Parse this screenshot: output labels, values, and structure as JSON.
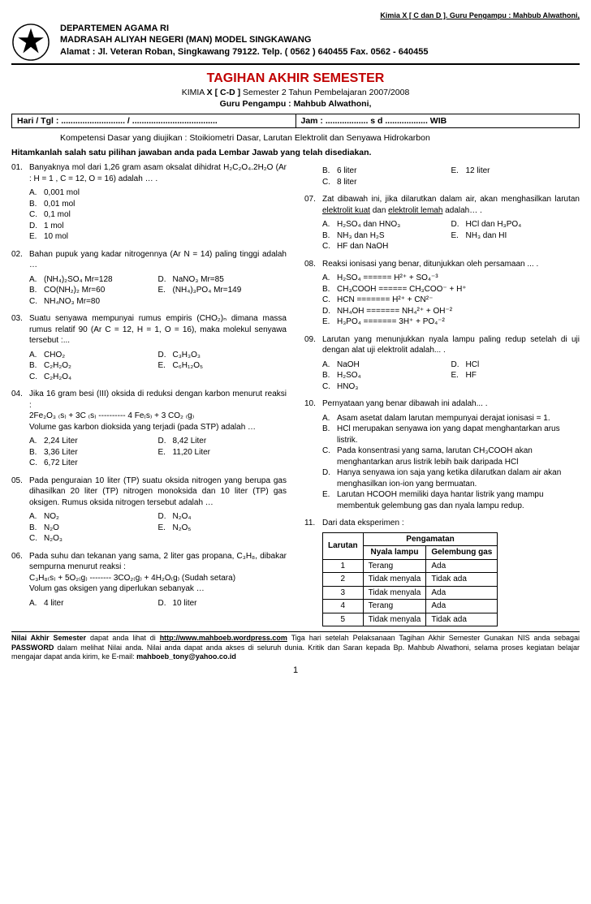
{
  "top_right": "Kimia  X  [ C dan D ].  Guru Pengampu :  Mahbub Alwathoni,",
  "header": {
    "dept": "DEPARTEMEN AGAMA RI",
    "school": "MADRASAH ALIYAH NEGERI (MAN) MODEL SINGKAWANG",
    "address": "Alamat : Jl. Veteran Roban, Singkawang  79122. Telp. ( 0562 ) 640455 Fax. 0562 - 640455"
  },
  "title": "TAGIHAN  AKHIR  SEMESTER",
  "subject_line_prefix": "KIMIA   ",
  "subject_class": "X [ C-D ]",
  "subject_rest": "    Semester 2  Tahun  Pembelajaran  2007/2008",
  "teacher_label": "Guru Pengampu :  Mahbub Alwathoni,",
  "info_left": "Hari / Tgl  :  ........................... / ....................................",
  "info_right": "Jam  :   ..................   s d  ..................  WIB",
  "kompetensi": "Kompetensi Dasar yang diujikan :  Stoikiometri Dasar, Larutan Elektrolit dan Senyawa Hidrokarbon",
  "instruksi": "Hitamkanlah salah satu pilihan jawaban anda  pada Lembar Jawab yang  telah disediakan.",
  "questions": [
    {
      "n": "01.",
      "text": "Banyaknya mol dari 1,26 gram asam oksalat dihidrat H₂C₂O₄.2H₂O (Ar : H = 1 , C = 12, O = 16) adalah … .",
      "opts": [
        [
          "A.",
          "0,001 mol"
        ],
        [
          "B.",
          "0,01   mol"
        ],
        [
          "C.",
          "0,1     mol"
        ],
        [
          "D.",
          "1      mol"
        ],
        [
          "E.",
          "10   mol"
        ]
      ]
    },
    {
      "n": "02.",
      "text": "Bahan pupuk yang kadar nitrogennya (Ar N = 14) paling tinggi adalah …",
      "opts2": [
        [
          "A.",
          "(NH₄)₂SO₄ Mr=128",
          "D.",
          "NaNO₃     Mr=85"
        ],
        [
          "B.",
          "CO(NH₂)₂  Mr=60",
          "E.",
          "(NH₄)₃PO₄ Mr=149"
        ],
        [
          "C.",
          "NH₄NO₃   Mr=80",
          "",
          ""
        ]
      ]
    },
    {
      "n": "03.",
      "text": "Suatu senyawa mempunyai rumus empiris (CHO₂)ₙ dimana massa rumus relatif 90 (Ar C = 12, H = 1, O = 16), maka molekul senyawa tersebut :...",
      "opts2": [
        [
          "A.",
          "CHO₂",
          "D.",
          "C₃H₃O₃"
        ],
        [
          "B.",
          "C₂H₂O₂",
          "E.",
          "C₆H₁₂O₅"
        ],
        [
          "C.",
          "C₂H₂O₄",
          "",
          ""
        ]
      ]
    },
    {
      "n": "04.",
      "text": "Jika 16 gram besi (III) oksida di reduksi dengan karbon menurut reaksi :\n2Fe₂O₃ ₍s₎ + 3C ₍s₎  ---------- 4 Fe₍s₎ + 3 CO₂ ₍g₎\nVolume gas karbon dioksida yang terjadi (pada STP) adalah …",
      "opts2": [
        [
          "A.",
          "2,24  Liter",
          "D.",
          "8,42  Liter"
        ],
        [
          "B.",
          "3,36  Liter",
          "E.",
          "11,20 Liter"
        ],
        [
          "C.",
          "6,72  Liter",
          "",
          ""
        ]
      ]
    },
    {
      "n": "05.",
      "text": "Pada penguraian 10 liter (TP) suatu oksida nitrogen yang berupa gas dihasilkan 20 liter (TP) nitrogen monoksida dan 10 liter (TP) gas oksigen. Rumus oksida nitrogen tersebut adalah …",
      "opts2": [
        [
          "A.",
          "NO₂",
          "D.",
          "N₂O₄"
        ],
        [
          "B.",
          "N₂O",
          "E.",
          "N₂O₅"
        ],
        [
          "C.",
          "N₂O₃",
          "",
          ""
        ]
      ]
    },
    {
      "n": "06.",
      "text": "Pada suhu dan tekanan yang sama, 2 liter gas propana, C₃H₈, dibakar sempurna menurut reaksi :\nC₃H₈₍s₎ + 5O₂₍g₎ -------- 3CO₂₍g₎ + 4H₂O₍g₎ (Sudah setara)\nVolum gas oksigen yang diperlukan sebanyak …",
      "opts2": [
        [
          "A.",
          "4 liter",
          "D.",
          "10 liter"
        ]
      ]
    },
    {
      "n": "",
      "continuation": true,
      "opts2": [
        [
          "B.",
          "6 liter",
          "E.",
          "12 liter"
        ],
        [
          "C.",
          "8 liter",
          "",
          ""
        ]
      ]
    },
    {
      "n": "07.",
      "text": "Zat dibawah ini, jika dilarutkan dalam air, akan menghasilkan larutan elektrolit kuat dan elektrolit lemah adalah… .",
      "text_underline": [
        "elektrolit kuat",
        "elektrolit lemah"
      ],
      "opts2": [
        [
          "A.",
          "H₂SO₄ dan HNO₃",
          "D.",
          "HCl dan H₃PO₄"
        ],
        [
          "B.",
          "NH₃ dan H₂S",
          "E.",
          "NH₃ dan HI"
        ],
        [
          "C.",
          "HF dan NaOH",
          "",
          ""
        ]
      ]
    },
    {
      "n": "08.",
      "text": "Reaksi   ionisasi yang  benar,    ditunjukkan  oleh persamaan ... .",
      "opts": [
        [
          "A.",
          "H₂SO₄  ======  H²⁺  +  SO₄⁻³"
        ],
        [
          "B.",
          "CH₃COOH  ======  CH₃COO⁻ + H⁺"
        ],
        [
          "C.",
          "HCN  =======   H²⁺ + CN²⁻"
        ],
        [
          "D.",
          "NH₄OH  =======   NH₄²⁺  +  OH⁻²"
        ],
        [
          "E.",
          "H₃PO₄  =======  3H⁺  +  PO₄⁻²"
        ]
      ]
    },
    {
      "n": "09.",
      "text": "Larutan yang menunjukkan nyala lampu paling redup setelah di uji dengan alat uji elektrolit adalah... .",
      "opts2": [
        [
          "A.",
          "NaOH",
          "D.",
          "HCl"
        ],
        [
          "B.",
          "H₂SO₄",
          "E.",
          "HF"
        ],
        [
          "C.",
          "HNO₃",
          "",
          ""
        ]
      ]
    },
    {
      "n": "10.",
      "text": "Pernyataan  yang benar dibawah ini  adalah... .",
      "opts": [
        [
          "A.",
          "Asam asetat dalam larutan mempunyai derajat ionisasi = 1."
        ],
        [
          "B.",
          "HCl merupakan senyawa ion yang dapat menghantarkan arus listrik."
        ],
        [
          "C.",
          "Pada konsentrasi yang sama, larutan CH₃COOH akan menghantarkan arus listrik lebih baik daripada HCl"
        ],
        [
          "D.",
          "Hanya senyawa ion saja yang ketika dilarutkan dalam air akan menghasilkan ion-ion yang bermuatan."
        ],
        [
          "E.",
          "Larutan HCOOH memiliki daya hantar listrik yang mampu membentuk gelembung gas dan nyala lampu redup."
        ]
      ]
    },
    {
      "n": "11.",
      "text": "Dari data eksperimen :",
      "table": {
        "headers": [
          "Larutan",
          "Nyala lampu",
          "Gelembung gas"
        ],
        "super_header": "Pengamatan",
        "rows": [
          [
            "1",
            "Terang",
            "Ada"
          ],
          [
            "2",
            "Tidak menyala",
            "Tidak ada"
          ],
          [
            "3",
            "Tidak menyala",
            "Ada"
          ],
          [
            "4",
            "Terang",
            "Ada"
          ],
          [
            "5",
            "Tidak menyala",
            "Tidak ada"
          ]
        ]
      }
    }
  ],
  "footer": "Nilai  Akhir Semester  dapat  anda lihat  di  http://www.mahboeb.wordpress.com  Tiga hari setelah Pelaksanaan Tagihan  Akhir Semester  Gunakan NIS anda sebagai PASSWORD dalam melihat Nilai anda. Nilai anda dapat anda akses  di seluruh dunia. Kritik dan Saran kepada Bp. Mahbub Alwathoni,  selama proses kegiatan belajar mengajar  dapat anda  kirim,  ke E-mail:  mahboeb_tony@yahoo.co.id",
  "footer_bold_parts": [
    "Nilai  Akhir Semester",
    "http://www.mahboeb.wordpress.com",
    "PASSWORD",
    "mahboeb_tony@yahoo.co.id"
  ],
  "page_number": "1"
}
